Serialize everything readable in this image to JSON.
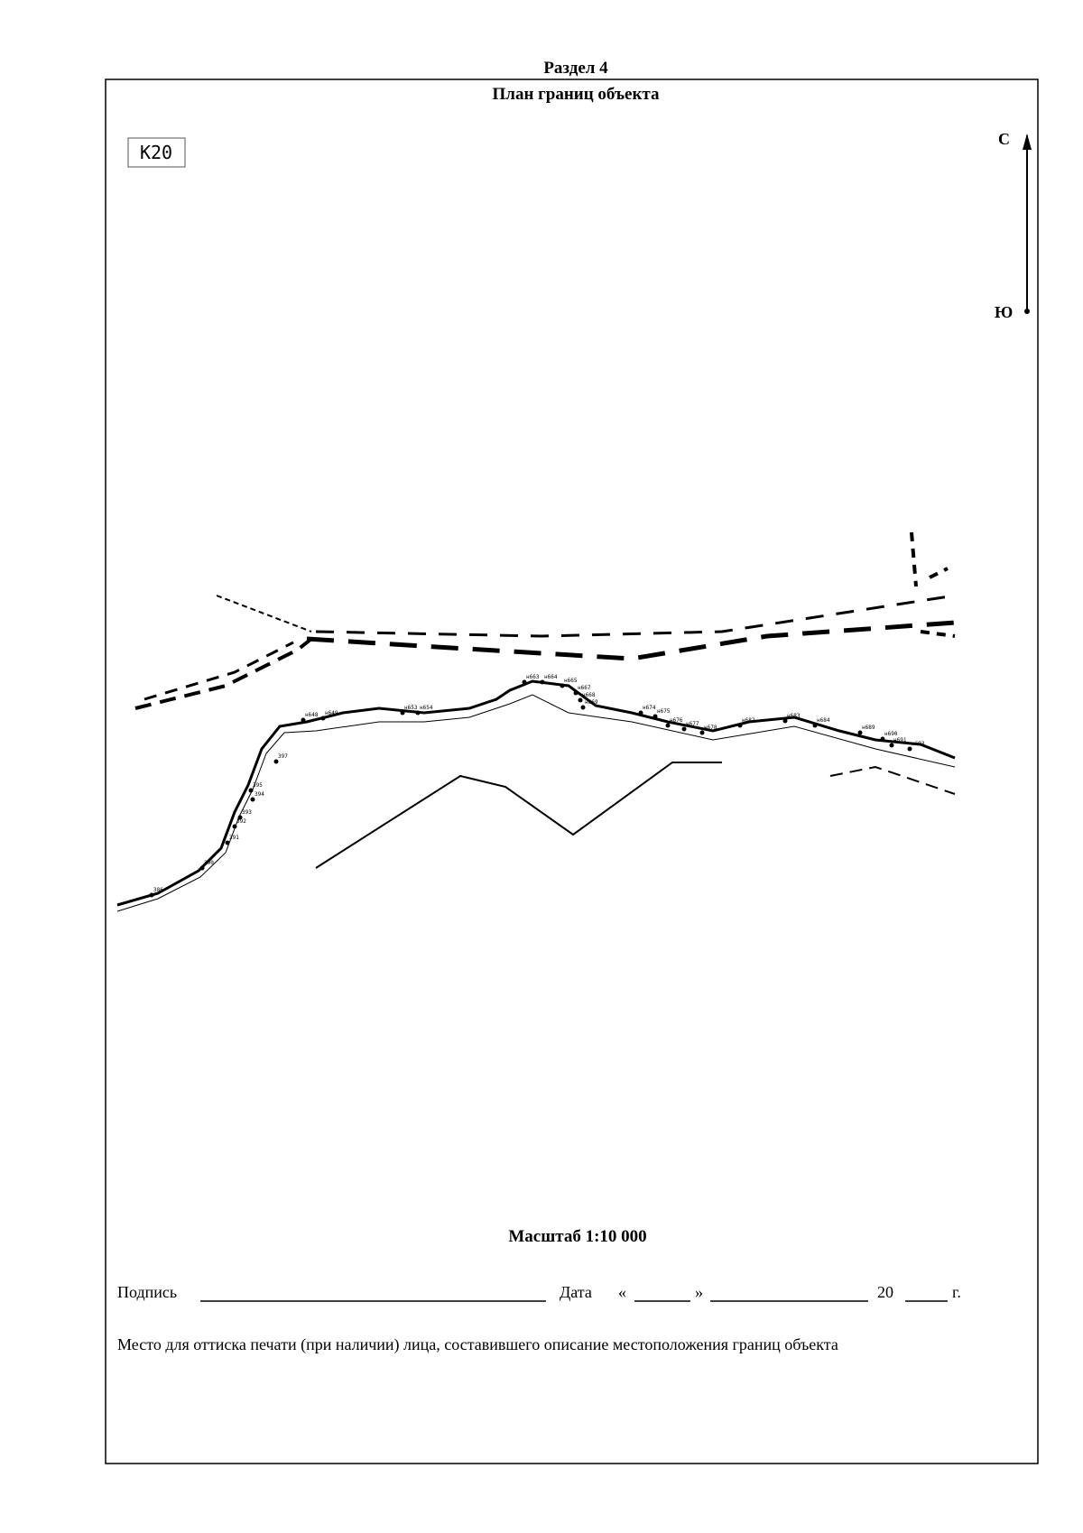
{
  "header": {
    "section": "Раздел 4",
    "title": "План границ объекта"
  },
  "sheet": "К20",
  "compass": {
    "north": "С",
    "south": "Ю"
  },
  "map": {
    "points": [
      "н648",
      "н649",
      "н653",
      "н654",
      "н663",
      "н664",
      "н665",
      "н667",
      "н668",
      "н669",
      "н674",
      "н675",
      "н676",
      "н677",
      "н678",
      "н682",
      "н683",
      "н684",
      "н689",
      "н690",
      "н691",
      "н693",
      "397",
      "395",
      "394",
      "393",
      "392",
      "391",
      "390",
      "386"
    ]
  },
  "scale": "Масштаб 1:10 000",
  "signature": {
    "label": "Подпись",
    "date_label": "Дата",
    "quote_open": "«",
    "quote_close": "»",
    "year_prefix": "20",
    "year_suffix": "г."
  },
  "stamp_note": "Место для оттиска печати (при наличии) лица, составившего описание местоположения границ объекта"
}
